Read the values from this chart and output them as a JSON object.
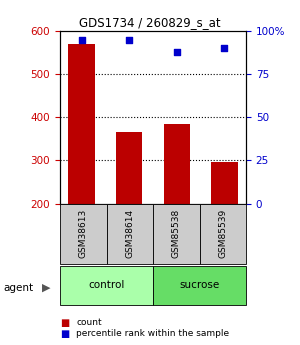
{
  "title": "GDS1734 / 260829_s_at",
  "samples": [
    "GSM38613",
    "GSM38614",
    "GSM85538",
    "GSM85539"
  ],
  "bar_values": [
    570,
    365,
    385,
    297
  ],
  "percentile_values": [
    95,
    95,
    88,
    90
  ],
  "bar_color": "#bb0000",
  "dot_color": "#0000cc",
  "ylim_left": [
    200,
    600
  ],
  "ylim_right": [
    0,
    100
  ],
  "yticks_left": [
    200,
    300,
    400,
    500,
    600
  ],
  "yticks_right": [
    0,
    25,
    50,
    75,
    100
  ],
  "ytick_labels_right": [
    "0",
    "25",
    "50",
    "75",
    "100%"
  ],
  "grid_lines": [
    300,
    400,
    500
  ],
  "groups": [
    {
      "label": "control",
      "indices": [
        0,
        1
      ],
      "color": "#aaffaa"
    },
    {
      "label": "sucrose",
      "indices": [
        2,
        3
      ],
      "color": "#66dd66"
    }
  ],
  "agent_label": "agent",
  "legend_items": [
    {
      "label": "count",
      "color": "#bb0000"
    },
    {
      "label": "percentile rank within the sample",
      "color": "#0000cc"
    }
  ],
  "bar_width": 0.55,
  "base_value": 200,
  "left_tick_color": "#cc0000",
  "right_tick_color": "#0000cc",
  "sample_box_color": "#cccccc",
  "fig_width": 3.0,
  "fig_height": 3.45
}
